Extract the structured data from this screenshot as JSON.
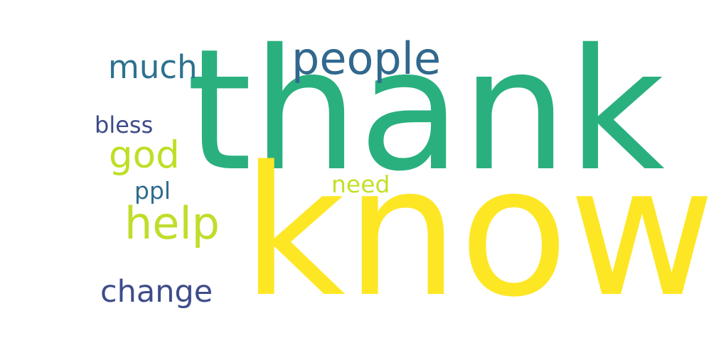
{
  "words": [
    {
      "text": "thank",
      "color": "#2ab07f"
    },
    {
      "text": "know",
      "color": "#fde725"
    },
    {
      "text": "people",
      "color": "#31688e"
    },
    {
      "text": "much",
      "color": "#2c728e"
    },
    {
      "text": "bless",
      "color": "#3e4a89"
    },
    {
      "text": "god",
      "color": "#bddf26"
    },
    {
      "text": "ppl",
      "color": "#2f6c8e"
    },
    {
      "text": "need",
      "color": "#c3e02a"
    },
    {
      "text": "help",
      "color": "#bfde2b"
    },
    {
      "text": "change",
      "color": "#3e4c8a"
    }
  ]
}
